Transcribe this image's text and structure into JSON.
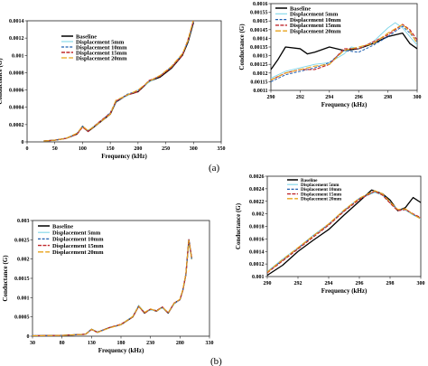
{
  "panel_labels": [
    "(a)",
    "(b)"
  ],
  "legend_entries": [
    "Baseline",
    "Displacement 5mm",
    "Displacement 10mm",
    "Displacement 15mm",
    "Displacement 20mm"
  ],
  "colors": {
    "Baseline": "#000000",
    "Displacement 5mm": "#7fd6e8",
    "Displacement 10mm": "#1f5fb0",
    "Displacement 15mm": "#c0282d",
    "Displacement 20mm": "#e8a21a"
  },
  "chart_data": [
    {
      "id": "a_full",
      "type": "line",
      "xlabel": "Frequency (kHz)",
      "ylabel": "Conductance (G)",
      "xlim": [
        0,
        350
      ],
      "ylim": [
        0,
        0.0014
      ],
      "xticks": [
        "0",
        "50",
        "100",
        "150",
        "200",
        "250",
        "300",
        "350"
      ],
      "yticks": [
        "0",
        "0.0002",
        "0.0004",
        "0.0006",
        "0.0008",
        "0.001",
        "0.0012",
        "0.0014"
      ],
      "legend": "top-left",
      "series": [
        {
          "name": "Baseline",
          "x": [
            30,
            50,
            70,
            90,
            100,
            110,
            130,
            150,
            160,
            180,
            200,
            220,
            240,
            260,
            280,
            290,
            300
          ],
          "y": [
            1e-05,
            2e-05,
            4e-05,
            9e-05,
            0.00018,
            0.00012,
            0.00022,
            0.00032,
            0.00046,
            0.00054,
            0.00058,
            0.0007,
            0.00075,
            0.00085,
            0.001,
            0.00115,
            0.00138
          ]
        },
        {
          "name": "Displacement 5mm",
          "x": [
            30,
            50,
            70,
            90,
            100,
            110,
            130,
            150,
            160,
            180,
            200,
            220,
            240,
            260,
            280,
            290,
            300
          ],
          "y": [
            1e-05,
            2e-05,
            4e-05,
            0.0001,
            0.00017,
            0.00013,
            0.00023,
            0.00033,
            0.00047,
            0.00053,
            0.0006,
            0.00069,
            0.00077,
            0.00086,
            0.00102,
            0.00117,
            0.0014
          ]
        },
        {
          "name": "Displacement 10mm",
          "x": [
            30,
            50,
            70,
            90,
            100,
            110,
            130,
            150,
            160,
            180,
            200,
            220,
            240,
            260,
            280,
            290,
            300
          ],
          "y": [
            1e-05,
            2e-05,
            4e-05,
            0.0001,
            0.00018,
            0.00013,
            0.00022,
            0.00034,
            0.00046,
            0.00055,
            0.00059,
            0.0007,
            0.00076,
            0.00087,
            0.00101,
            0.00116,
            0.00139
          ]
        },
        {
          "name": "Displacement 15mm",
          "x": [
            30,
            50,
            70,
            90,
            100,
            110,
            130,
            150,
            160,
            180,
            200,
            220,
            240,
            260,
            280,
            290,
            300
          ],
          "y": [
            1e-05,
            2e-05,
            4e-05,
            9e-05,
            0.00017,
            0.00012,
            0.00023,
            0.00033,
            0.00047,
            0.00054,
            0.00058,
            0.00071,
            0.00076,
            0.00086,
            0.001,
            0.00118,
            0.0014
          ]
        },
        {
          "name": "Displacement 20mm",
          "x": [
            30,
            50,
            70,
            90,
            100,
            110,
            130,
            150,
            160,
            180,
            200,
            220,
            240,
            260,
            280,
            290,
            300
          ],
          "y": [
            1e-05,
            2e-05,
            4e-05,
            0.0001,
            0.00018,
            0.00013,
            0.00022,
            0.00032,
            0.00048,
            0.00054,
            0.0006,
            0.0007,
            0.00077,
            0.00087,
            0.00102,
            0.00117,
            0.00142
          ]
        }
      ]
    },
    {
      "id": "a_zoom",
      "type": "line",
      "xlabel": "Frequency (kHz)",
      "ylabel": "Conductance (G)",
      "xlim": [
        290,
        300
      ],
      "ylim": [
        0.0011,
        0.0016
      ],
      "xticks": [
        "290",
        "292",
        "294",
        "296",
        "298",
        "300"
      ],
      "yticks": [
        "0.0011",
        "0.00115",
        "0.0012",
        "0.00125",
        "0.0013",
        "0.00135",
        "0.0014",
        "0.00145",
        "0.0015",
        "0.00155",
        "0.0016"
      ],
      "legend": "top-left",
      "series": [
        {
          "name": "Baseline",
          "x": [
            290,
            290.5,
            291,
            292,
            292.5,
            293,
            294,
            295,
            296,
            297,
            298,
            299,
            299.5,
            300
          ],
          "y": [
            0.00122,
            0.00128,
            0.00135,
            0.00134,
            0.00131,
            0.00132,
            0.00135,
            0.00133,
            0.00134,
            0.00137,
            0.00141,
            0.00143,
            0.00137,
            0.00134
          ]
        },
        {
          "name": "Displacement 5mm",
          "x": [
            290,
            291,
            292,
            293,
            294,
            295,
            295.5,
            296,
            297,
            298,
            298.5,
            299,
            299.5,
            300
          ],
          "y": [
            0.00117,
            0.00121,
            0.00123,
            0.00125,
            0.00126,
            0.00131,
            0.00135,
            0.00134,
            0.00138,
            0.00146,
            0.00149,
            0.00146,
            0.00141,
            0.00136
          ]
        },
        {
          "name": "Displacement 10mm",
          "x": [
            290,
            291,
            292,
            293,
            294,
            295,
            296,
            297,
            298,
            299,
            299.5,
            300
          ],
          "y": [
            0.00115,
            0.00119,
            0.00121,
            0.00123,
            0.00126,
            0.00133,
            0.00132,
            0.00136,
            0.00141,
            0.00147,
            0.00143,
            0.00138
          ]
        },
        {
          "name": "Displacement 15mm",
          "x": [
            290,
            291,
            292,
            293,
            294,
            295,
            296,
            297,
            298,
            299,
            299.5,
            300
          ],
          "y": [
            0.00116,
            0.0012,
            0.00122,
            0.00122,
            0.00125,
            0.00134,
            0.00134,
            0.00138,
            0.00142,
            0.00148,
            0.00145,
            0.00139
          ]
        },
        {
          "name": "Displacement 20mm",
          "x": [
            290,
            291,
            292,
            293,
            294,
            295,
            296,
            297,
            298,
            299,
            299.5,
            300
          ],
          "y": [
            0.00116,
            0.0012,
            0.00122,
            0.00124,
            0.00125,
            0.00133,
            0.00135,
            0.00137,
            0.00143,
            0.00148,
            0.00144,
            0.00137
          ]
        }
      ]
    },
    {
      "id": "b_full",
      "type": "line",
      "xlabel": "Frequency (kHz)",
      "ylabel": "Conductance (G)",
      "xlim": [
        30,
        330
      ],
      "ylim": [
        0,
        0.003
      ],
      "xticks": [
        "30",
        "80",
        "130",
        "180",
        "230",
        "280",
        "330"
      ],
      "yticks": [
        "0",
        "0.0005",
        "0.001",
        "0.0015",
        "0.002",
        "0.0025",
        "0.003"
      ],
      "legend": "top-left",
      "series": [
        {
          "name": "Baseline",
          "x": [
            30,
            80,
            120,
            130,
            140,
            160,
            180,
            200,
            210,
            220,
            230,
            240,
            250,
            260,
            270,
            280,
            285,
            290,
            295,
            300
          ],
          "y": [
            1e-05,
            2e-05,
            5e-05,
            0.00018,
            0.0001,
            0.00022,
            0.0003,
            0.0005,
            0.00078,
            0.0006,
            0.0007,
            0.00065,
            0.00075,
            0.0006,
            0.00085,
            0.00095,
            0.0012,
            0.0016,
            0.0025,
            0.002
          ]
        },
        {
          "name": "Displacement 5mm",
          "x": [
            30,
            80,
            120,
            130,
            140,
            160,
            180,
            200,
            210,
            220,
            230,
            240,
            250,
            260,
            270,
            280,
            285,
            290,
            295,
            300
          ],
          "y": [
            1e-05,
            2e-05,
            5e-05,
            0.00017,
            0.0001,
            0.00021,
            0.00031,
            0.00052,
            0.0008,
            0.00062,
            0.00068,
            0.00066,
            0.00073,
            0.00062,
            0.00083,
            0.00096,
            0.0012,
            0.0016,
            0.0024,
            0.002
          ]
        },
        {
          "name": "Displacement 10mm",
          "x": [
            30,
            80,
            120,
            130,
            140,
            160,
            180,
            200,
            210,
            220,
            230,
            240,
            250,
            260,
            270,
            280,
            285,
            290,
            295,
            300
          ],
          "y": [
            1e-05,
            2e-05,
            5e-05,
            0.00018,
            0.00011,
            0.00022,
            0.0003,
            0.00051,
            0.00079,
            0.00061,
            0.00069,
            0.00067,
            0.00074,
            0.00061,
            0.00084,
            0.00094,
            0.00121,
            0.00161,
            0.00245,
            0.00201
          ]
        },
        {
          "name": "Displacement 15mm",
          "x": [
            30,
            80,
            120,
            130,
            140,
            160,
            180,
            200,
            210,
            220,
            230,
            240,
            250,
            260,
            270,
            280,
            285,
            290,
            295,
            300
          ],
          "y": [
            1e-05,
            2e-05,
            5e-05,
            0.00017,
            0.0001,
            0.00022,
            0.00031,
            0.0005,
            0.00077,
            0.0006,
            0.0007,
            0.00066,
            0.00076,
            0.0006,
            0.00086,
            0.00095,
            0.0012,
            0.0016,
            0.0025,
            0.00202
          ]
        },
        {
          "name": "Displacement 20mm",
          "x": [
            30,
            80,
            120,
            130,
            140,
            160,
            180,
            200,
            210,
            220,
            230,
            240,
            250,
            260,
            270,
            280,
            285,
            290,
            295,
            300
          ],
          "y": [
            1e-05,
            2e-05,
            5e-05,
            0.00018,
            0.0001,
            0.00021,
            0.0003,
            0.00051,
            0.00078,
            0.00062,
            0.00071,
            0.00065,
            0.00075,
            0.00061,
            0.00085,
            0.00096,
            0.00122,
            0.00162,
            0.00248,
            0.00199
          ]
        }
      ]
    },
    {
      "id": "b_zoom",
      "type": "line",
      "xlabel": "Frequency (kHz)",
      "ylabel": "Conductance (G)",
      "xlim": [
        290,
        300
      ],
      "ylim": [
        0.001,
        0.0026
      ],
      "xticks": [
        "290",
        "292",
        "294",
        "296",
        "298",
        "300"
      ],
      "yticks": [
        "0.001",
        "0.0012",
        "0.0014",
        "0.0016",
        "0.0018",
        "0.002",
        "0.0022",
        "0.0024",
        "0.0026"
      ],
      "legend": "top-left",
      "series": [
        {
          "name": "Baseline",
          "x": [
            290,
            291,
            292,
            293,
            294,
            295,
            296,
            296.8,
            297.5,
            298,
            298.5,
            299,
            299.5,
            300
          ],
          "y": [
            0.00102,
            0.00118,
            0.0014,
            0.00158,
            0.00175,
            0.00198,
            0.0022,
            0.00238,
            0.00232,
            0.00222,
            0.00205,
            0.0021,
            0.00226,
            0.00218
          ]
        },
        {
          "name": "Displacement 5mm",
          "x": [
            290,
            291,
            292,
            293,
            294,
            295,
            296,
            297,
            297.5,
            298,
            298.5,
            299,
            299.5,
            300
          ],
          "y": [
            0.00108,
            0.00128,
            0.00146,
            0.00166,
            0.00184,
            0.00206,
            0.00225,
            0.00234,
            0.0023,
            0.00218,
            0.00207,
            0.00206,
            0.00198,
            0.00192
          ]
        },
        {
          "name": "Displacement 10mm",
          "x": [
            290,
            291,
            292,
            293,
            294,
            295,
            296,
            297,
            297.5,
            298,
            298.5,
            299,
            299.5,
            300
          ],
          "y": [
            0.00107,
            0.00126,
            0.00145,
            0.00165,
            0.00183,
            0.00205,
            0.00224,
            0.00236,
            0.00231,
            0.00218,
            0.00206,
            0.00207,
            0.00199,
            0.00193
          ]
        },
        {
          "name": "Displacement 15mm",
          "x": [
            290,
            291,
            292,
            293,
            294,
            295,
            296,
            297,
            297.5,
            298,
            298.5,
            299,
            299.5,
            300
          ],
          "y": [
            0.00106,
            0.00125,
            0.00144,
            0.00163,
            0.00182,
            0.00204,
            0.00223,
            0.00236,
            0.0023,
            0.00217,
            0.00205,
            0.00207,
            0.002,
            0.00194
          ]
        },
        {
          "name": "Displacement 20mm",
          "x": [
            290,
            291,
            292,
            293,
            294,
            295,
            296,
            297,
            297.5,
            298,
            298.5,
            299,
            299.5,
            300
          ],
          "y": [
            0.00107,
            0.00127,
            0.00146,
            0.00165,
            0.00184,
            0.00206,
            0.00225,
            0.00237,
            0.00232,
            0.00219,
            0.00207,
            0.00208,
            0.00199,
            0.00192
          ]
        }
      ]
    }
  ]
}
